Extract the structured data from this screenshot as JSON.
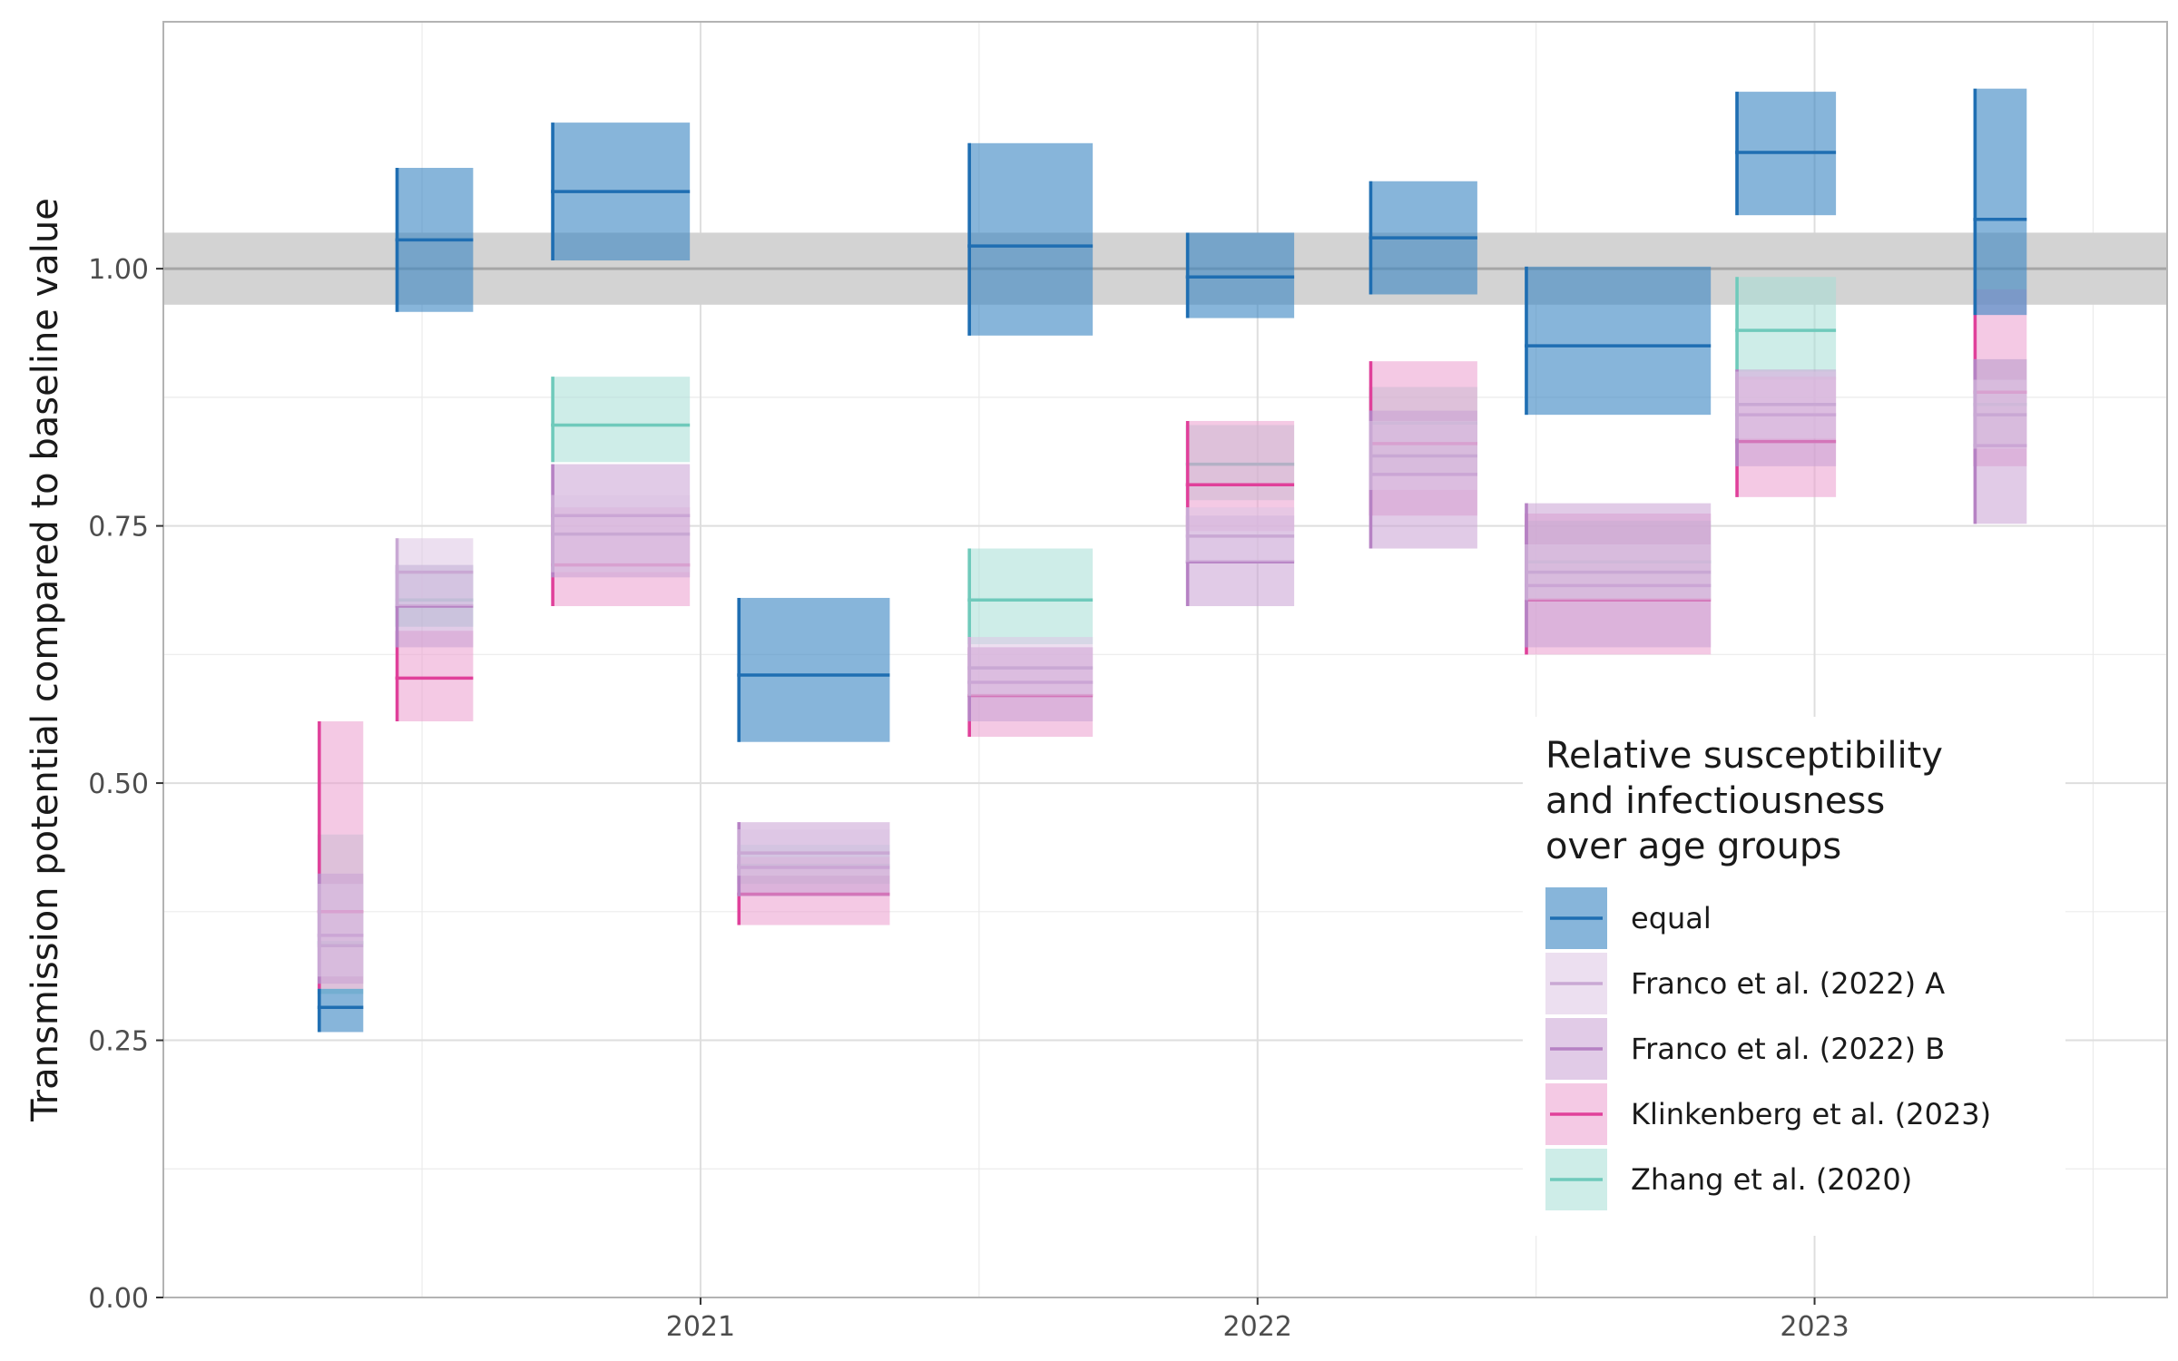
{
  "chart_data": {
    "type": "crossbar",
    "title": "",
    "xlabel": "",
    "ylabel": "Transmission potential compared to baseline value",
    "x_axis": {
      "type": "date",
      "range": [
        "2020-01-15",
        "2023-08-20"
      ],
      "ticks": [
        {
          "value": "2021-01-01",
          "label": "2021"
        },
        {
          "value": "2022-01-01",
          "label": "2022"
        },
        {
          "value": "2023-01-01",
          "label": "2023"
        }
      ]
    },
    "y_axis": {
      "range": [
        0,
        1.24
      ],
      "ticks": [
        {
          "value": 0.0,
          "label": "0.00"
        },
        {
          "value": 0.25,
          "label": "0.25"
        },
        {
          "value": 0.5,
          "label": "0.50"
        },
        {
          "value": 0.75,
          "label": "0.75"
        },
        {
          "value": 1.0,
          "label": "1.00"
        }
      ]
    },
    "grid": true,
    "reference": {
      "value": 1.0,
      "lower": 0.965,
      "upper": 1.035
    },
    "legend": {
      "title": [
        "Relative susceptibility",
        "and infectiousness",
        "over age groups"
      ],
      "placement": "bottom-right inside"
    },
    "series": [
      {
        "name": "equal",
        "color": "#1f6eb2",
        "fill": "#3d88c4",
        "points": [
          {
            "start": "2020-04-25",
            "end": "2020-05-25",
            "y": 0.282,
            "ymin": 0.258,
            "ymax": 0.3
          },
          {
            "start": "2020-06-15",
            "end": "2020-08-05",
            "y": 1.028,
            "ymin": 0.958,
            "ymax": 1.098
          },
          {
            "start": "2020-09-25",
            "end": "2020-12-25",
            "y": 1.075,
            "ymin": 1.008,
            "ymax": 1.142
          },
          {
            "start": "2021-01-25",
            "end": "2021-05-05",
            "y": 0.605,
            "ymin": 0.54,
            "ymax": 0.68
          },
          {
            "start": "2021-06-25",
            "end": "2021-09-15",
            "y": 1.022,
            "ymin": 0.935,
            "ymax": 1.122
          },
          {
            "start": "2021-11-15",
            "end": "2022-01-25",
            "y": 0.992,
            "ymin": 0.952,
            "ymax": 1.035
          },
          {
            "start": "2022-03-15",
            "end": "2022-05-25",
            "y": 1.03,
            "ymin": 0.975,
            "ymax": 1.085
          },
          {
            "start": "2022-06-25",
            "end": "2022-10-25",
            "y": 0.925,
            "ymin": 0.858,
            "ymax": 1.002
          },
          {
            "start": "2022-11-10",
            "end": "2023-01-15",
            "y": 1.113,
            "ymin": 1.052,
            "ymax": 1.172
          },
          {
            "start": "2023-04-15",
            "end": "2023-05-20",
            "y": 1.048,
            "ymin": 0.955,
            "ymax": 1.175
          }
        ]
      },
      {
        "name": "Franco et al. (2022) A",
        "color": "#c9a8d4",
        "fill": "#dcc5e4",
        "points": [
          {
            "start": "2020-04-25",
            "end": "2020-05-25",
            "y": 0.342,
            "ymin": 0.312,
            "ymax": 0.402
          },
          {
            "start": "2020-06-15",
            "end": "2020-08-05",
            "y": 0.705,
            "ymin": 0.672,
            "ymax": 0.738
          },
          {
            "start": "2020-09-25",
            "end": "2020-12-25",
            "y": 0.742,
            "ymin": 0.705,
            "ymax": 0.78
          },
          {
            "start": "2021-01-25",
            "end": "2021-05-05",
            "y": 0.432,
            "ymin": 0.41,
            "ymax": 0.455
          },
          {
            "start": "2021-06-25",
            "end": "2021-09-15",
            "y": 0.612,
            "ymin": 0.585,
            "ymax": 0.642
          },
          {
            "start": "2021-11-15",
            "end": "2022-01-25",
            "y": 0.74,
            "ymin": 0.715,
            "ymax": 0.768
          },
          {
            "start": "2022-03-15",
            "end": "2022-05-25",
            "y": 0.818,
            "ymin": 0.785,
            "ymax": 0.852
          },
          {
            "start": "2022-06-25",
            "end": "2022-10-25",
            "y": 0.705,
            "ymin": 0.678,
            "ymax": 0.732
          },
          {
            "start": "2022-11-10",
            "end": "2023-01-15",
            "y": 0.868,
            "ymin": 0.835,
            "ymax": 0.9
          },
          {
            "start": "2023-04-15",
            "end": "2023-05-20",
            "y": 0.858,
            "ymin": 0.825,
            "ymax": 0.892
          }
        ]
      },
      {
        "name": "Franco et al. (2022) B",
        "color": "#b682c4",
        "fill": "#c9a0d4",
        "points": [
          {
            "start": "2020-04-25",
            "end": "2020-05-25",
            "y": 0.352,
            "ymin": 0.305,
            "ymax": 0.412
          },
          {
            "start": "2020-06-15",
            "end": "2020-08-05",
            "y": 0.672,
            "ymin": 0.632,
            "ymax": 0.712
          },
          {
            "start": "2020-09-25",
            "end": "2020-12-25",
            "y": 0.76,
            "ymin": 0.7,
            "ymax": 0.81
          },
          {
            "start": "2021-01-25",
            "end": "2021-05-05",
            "y": 0.418,
            "ymin": 0.39,
            "ymax": 0.462
          },
          {
            "start": "2021-06-25",
            "end": "2021-09-15",
            "y": 0.598,
            "ymin": 0.56,
            "ymax": 0.632
          },
          {
            "start": "2021-11-15",
            "end": "2022-01-25",
            "y": 0.715,
            "ymin": 0.672,
            "ymax": 0.76
          },
          {
            "start": "2022-03-15",
            "end": "2022-05-25",
            "y": 0.8,
            "ymin": 0.728,
            "ymax": 0.862
          },
          {
            "start": "2022-06-25",
            "end": "2022-10-25",
            "y": 0.692,
            "ymin": 0.632,
            "ymax": 0.772
          },
          {
            "start": "2022-11-10",
            "end": "2023-01-15",
            "y": 0.858,
            "ymin": 0.808,
            "ymax": 0.902
          },
          {
            "start": "2023-04-15",
            "end": "2023-05-20",
            "y": 0.828,
            "ymin": 0.752,
            "ymax": 0.912
          }
        ]
      },
      {
        "name": "Klinkenberg et al. (2023)",
        "color": "#e0409a",
        "fill": "#eb9ccd",
        "points": [
          {
            "start": "2020-04-25",
            "end": "2020-05-25",
            "y": 0.375,
            "ymin": 0.3,
            "ymax": 0.56
          },
          {
            "start": "2020-06-15",
            "end": "2020-08-05",
            "y": 0.602,
            "ymin": 0.56,
            "ymax": 0.648
          },
          {
            "start": "2020-09-25",
            "end": "2020-12-25",
            "y": 0.712,
            "ymin": 0.672,
            "ymax": 0.768
          },
          {
            "start": "2021-01-25",
            "end": "2021-05-05",
            "y": 0.392,
            "ymin": 0.362,
            "ymax": 0.428
          },
          {
            "start": "2021-06-25",
            "end": "2021-09-15",
            "y": 0.585,
            "ymin": 0.545,
            "ymax": 0.632
          },
          {
            "start": "2021-11-15",
            "end": "2022-01-25",
            "y": 0.79,
            "ymin": 0.745,
            "ymax": 0.852
          },
          {
            "start": "2022-03-15",
            "end": "2022-05-25",
            "y": 0.83,
            "ymin": 0.76,
            "ymax": 0.91
          },
          {
            "start": "2022-06-25",
            "end": "2022-10-25",
            "y": 0.678,
            "ymin": 0.625,
            "ymax": 0.762
          },
          {
            "start": "2022-11-10",
            "end": "2023-01-15",
            "y": 0.832,
            "ymin": 0.778,
            "ymax": 0.895
          },
          {
            "start": "2023-04-15",
            "end": "2023-05-20",
            "y": 0.88,
            "ymin": 0.808,
            "ymax": 0.98
          }
        ]
      },
      {
        "name": "Zhang et al. (2020)",
        "color": "#6fcabb",
        "fill": "#a6ded5",
        "points": [
          {
            "start": "2020-04-25",
            "end": "2020-05-25",
            "y": 0.345,
            "ymin": 0.295,
            "ymax": 0.45
          },
          {
            "start": "2020-06-15",
            "end": "2020-08-05",
            "y": 0.678,
            "ymin": 0.652,
            "ymax": 0.712
          },
          {
            "start": "2020-09-25",
            "end": "2020-12-25",
            "y": 0.848,
            "ymin": 0.812,
            "ymax": 0.895
          },
          {
            "start": "2021-01-25",
            "end": "2021-05-05",
            "y": 0.42,
            "ymin": 0.402,
            "ymax": 0.44
          },
          {
            "start": "2021-06-25",
            "end": "2021-09-15",
            "y": 0.678,
            "ymin": 0.635,
            "ymax": 0.728
          },
          {
            "start": "2021-11-15",
            "end": "2022-01-25",
            "y": 0.81,
            "ymin": 0.775,
            "ymax": 0.848
          },
          {
            "start": "2022-03-15",
            "end": "2022-05-25",
            "y": 0.85,
            "ymin": 0.8,
            "ymax": 0.885
          },
          {
            "start": "2022-06-25",
            "end": "2022-10-25",
            "y": 0.715,
            "ymin": 0.68,
            "ymax": 0.755
          },
          {
            "start": "2022-11-10",
            "end": "2023-01-15",
            "y": 0.94,
            "ymin": 0.892,
            "ymax": 0.992
          },
          {
            "start": "2023-04-15",
            "end": "2023-05-20",
            "y": 0.868,
            "ymin": 0.828,
            "ymax": 0.912
          }
        ]
      }
    ]
  }
}
